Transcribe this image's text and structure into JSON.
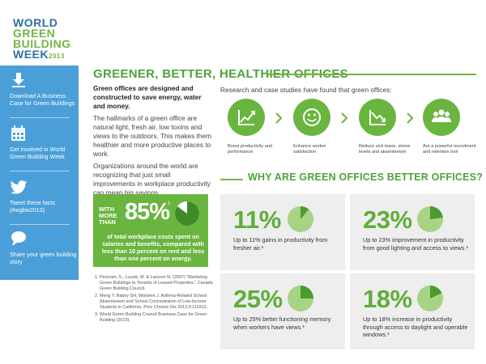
{
  "logo": {
    "line1": "WORLD",
    "line2": "GREEN",
    "line3": "BUILDING",
    "line4": "WEEK",
    "year": "2013"
  },
  "sidebar": {
    "items": [
      {
        "icon": "download-icon",
        "label": "Download A Business Case for Green Buildings"
      },
      {
        "icon": "calendar-icon",
        "label": "Get involved in World Green Building Week"
      },
      {
        "icon": "twitter-icon",
        "label": "Tweet these facts (#wgbw2013)"
      },
      {
        "icon": "chat-bubble-icon",
        "label": "Share your green building story"
      }
    ]
  },
  "header": {
    "title": "GREENER, BETTER, HEALTHIER OFFICES"
  },
  "intro": {
    "lead": "Green offices are designed and constructed to save energy, water and money.",
    "para1": "The hallmarks of a green office are natural light, fresh air, low toxins and views to the outdoors. This makes them healthier and more productive places to work.",
    "para2": "Organizations around the world are recognizing that just small improvements in workplace productivity can mean big savings."
  },
  "statbox": {
    "prefix": "WITH MORE THAN",
    "value": "85%",
    "footnote": "1",
    "fraction": 0.85,
    "description": "of total workplace costs spent on salaries and benefits, compared with less than 10 percent on rent and less than one percent on energy."
  },
  "footnotes": [
    "Persram, S., Lucuik, M. & Larsson N. (2007) \"Marketing Green Buildings to Tenants of Leased Properties.\" Canada Green Building Council.",
    "Meng Y. Babey SH, Wolstein J. Asthma-Related School Absenteeism and School Concentration of Low-Income Students in California. Prev Chronic Dis 2012;9:110312.",
    "World Green Building Council Business Case for Green Building (2013)."
  ],
  "research": {
    "intro": "Research and case studies have found that green offices:",
    "benefits": [
      {
        "icon": "chart-up-icon",
        "label": "Boost productivity and performance"
      },
      {
        "icon": "smiley-icon",
        "label": "Enhance worker satisfaction"
      },
      {
        "icon": "chart-down-icon",
        "label": "Reduce sick leave, stress levels and absenteeism"
      },
      {
        "icon": "team-icon",
        "label": "Are a powerful recruitment and retention tool"
      }
    ]
  },
  "why": {
    "title": "WHY ARE GREEN OFFICES BETTER OFFICES?",
    "cards": [
      {
        "value": "11%",
        "fraction": 0.11,
        "text": "Up to 11% gains in productivity from fresher air.³"
      },
      {
        "value": "23%",
        "fraction": 0.23,
        "text": "Up to 23% improvement in productivity from good lighting and access to views.³"
      },
      {
        "value": "25%",
        "fraction": 0.25,
        "text": "Up to 25% better functioning memory when workers have views.³"
      },
      {
        "value": "18%",
        "fraction": 0.18,
        "text": "Up to 18% increase in productivity through access to daylight and operable windows.³"
      }
    ]
  },
  "colors": {
    "green": "#6ab53f",
    "dark_green": "#4fa23c",
    "blue": "#4a9fd8",
    "card": "#eeeeee",
    "pie_light": "#a6d484"
  }
}
